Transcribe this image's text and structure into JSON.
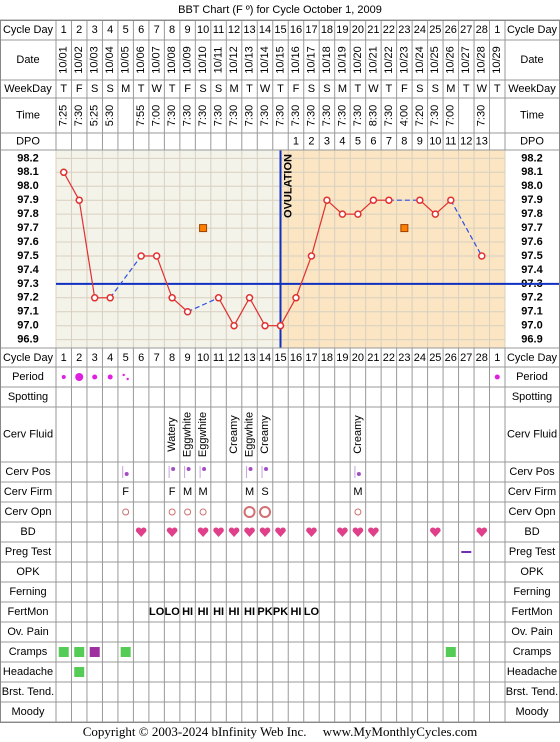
{
  "title": "BBT Chart (F º) for Cycle October 1, 2009",
  "table": {
    "cycle_day_label": "Cycle Day",
    "cycle_days": [
      1,
      2,
      3,
      4,
      5,
      6,
      7,
      8,
      9,
      10,
      11,
      12,
      13,
      14,
      15,
      16,
      17,
      18,
      19,
      20,
      21,
      22,
      23,
      24,
      25,
      26,
      27,
      28,
      1
    ],
    "date_label": "Date",
    "dates": [
      "10/01",
      "10/02",
      "10/03",
      "10/04",
      "10/05",
      "10/06",
      "10/07",
      "10/08",
      "10/09",
      "10/10",
      "10/11",
      "10/12",
      "10/13",
      "10/14",
      "10/15",
      "10/16",
      "10/17",
      "10/18",
      "10/19",
      "10/20",
      "10/21",
      "10/22",
      "10/23",
      "10/24",
      "10/25",
      "10/26",
      "10/27",
      "10/28",
      "10/29"
    ],
    "weekday_label": "WeekDay",
    "weekdays": [
      "T",
      "F",
      "S",
      "S",
      "M",
      "T",
      "W",
      "T",
      "F",
      "S",
      "S",
      "M",
      "T",
      "W",
      "T",
      "F",
      "S",
      "S",
      "M",
      "T",
      "W",
      "T",
      "F",
      "S",
      "S",
      "M",
      "T",
      "W",
      "T"
    ],
    "time_label": "Time",
    "times": [
      "7:25",
      "7:30",
      "5:25",
      "5:30",
      null,
      "7:55",
      "7:00",
      "7:30",
      "7:30",
      "7:30",
      "7:30",
      "7:30",
      "7:30",
      "7:30",
      "7:30",
      "7:30",
      "7:30",
      "7:30",
      "7:30",
      "7:30",
      "8:30",
      "7:30",
      "4:00",
      "7:20",
      "7:30",
      "7:00",
      null,
      "7:30",
      null
    ],
    "dpo_label": "DPO",
    "dpo": [
      null,
      null,
      null,
      null,
      null,
      null,
      null,
      null,
      null,
      null,
      null,
      null,
      null,
      null,
      null,
      1,
      2,
      3,
      4,
      5,
      6,
      7,
      8,
      9,
      10,
      11,
      12,
      13,
      null
    ]
  },
  "chart_data": {
    "type": "line",
    "series": [
      {
        "color": "#e03030",
        "values": [
          98.1,
          97.9,
          97.2,
          97.2,
          null,
          97.5,
          97.5,
          97.2,
          97.1,
          null,
          97.2,
          97.0,
          97.2,
          97.0,
          97.0,
          97.2,
          97.5,
          97.9,
          97.8,
          97.8,
          97.9,
          97.9,
          null,
          97.9,
          97.8,
          97.9,
          null,
          97.5,
          null
        ]
      },
      {
        "color": "#ff8000",
        "values": [
          null,
          null,
          null,
          null,
          null,
          null,
          null,
          null,
          null,
          97.7,
          null,
          null,
          null,
          null,
          null,
          null,
          null,
          null,
          null,
          null,
          null,
          null,
          97.7,
          null,
          null,
          null,
          null,
          null,
          null
        ]
      }
    ],
    "ylim": [
      96.84,
      98.26
    ],
    "yticks": [
      98.2,
      98.1,
      {
        "value": 98,
        "label": "98.0"
      },
      97.9,
      97.8,
      97.7,
      97.6,
      97.5,
      97.4,
      97.3,
      97.2,
      97.1,
      {
        "value": 97,
        "label": "97.0"
      },
      96.9
    ],
    "grid": true,
    "coverline": 97.3,
    "ovulation_day": 15,
    "ovulation_label": "OVULATION"
  },
  "rows": [
    {
      "label": "Period"
    },
    {
      "label": "Spotting"
    },
    {
      "label": "Cerv Fluid",
      "values": [
        null,
        null,
        null,
        null,
        null,
        null,
        null,
        "Watery",
        "Eggwhite",
        "Eggwhite",
        null,
        "Creamy",
        "Eggwhite",
        "Creamy",
        null,
        null,
        null,
        null,
        null,
        "Creamy",
        null,
        null,
        null,
        null,
        null,
        null,
        null,
        null,
        null
      ]
    },
    {
      "label": "Cerv Pos"
    },
    {
      "label": "Cerv Firm",
      "values": [
        null,
        null,
        null,
        null,
        "F",
        null,
        null,
        "F",
        "M",
        "M",
        null,
        null,
        "M",
        "S",
        null,
        null,
        null,
        null,
        null,
        "M",
        null,
        null,
        null,
        null,
        null,
        null,
        null,
        null,
        null
      ]
    },
    {
      "label": "Cerv Opn"
    },
    {
      "label": "BD"
    },
    {
      "label": "Preg Test"
    },
    {
      "label": "OPK"
    },
    {
      "label": "Ferning"
    },
    {
      "label": "FertMon",
      "values": [
        null,
        null,
        null,
        null,
        null,
        null,
        "LO",
        "LO",
        "HI",
        "HI",
        "HI",
        "HI",
        "HI",
        "PK",
        "PK",
        "HI",
        "LO",
        null,
        null,
        null,
        null,
        null,
        null,
        null,
        null,
        null,
        null,
        null,
        null
      ]
    },
    {
      "label": "Ov. Pain"
    },
    {
      "label": "Cramps"
    },
    {
      "label": "Headache"
    },
    {
      "label": "Brst. Tend."
    },
    {
      "label": "Moody"
    }
  ],
  "footer": "Copyright © 2003-2024 bInfinity Web Inc.     www.MyMonthlyCycles.com"
}
